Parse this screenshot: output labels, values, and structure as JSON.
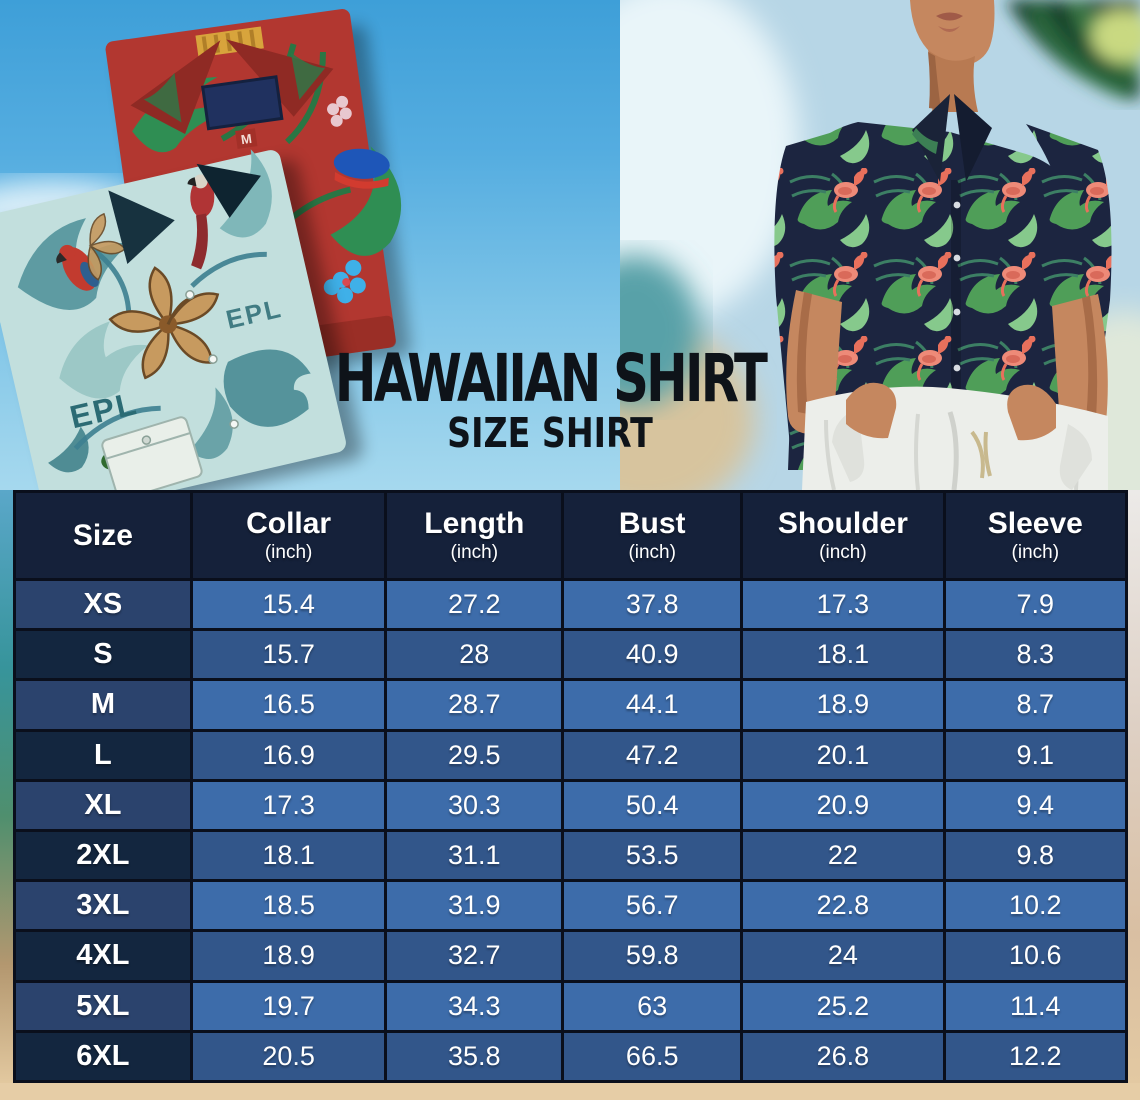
{
  "page": {
    "title": "HAWAIIAN SHIRT",
    "subtitle": "SIZE SHIRT"
  },
  "hero": {
    "red_shirt_size_tag": "M",
    "teal_shirt_print_text": "EPL"
  },
  "chart_data": {
    "type": "table",
    "title": "HAWAIIAN SHIRT SIZE SHIRT",
    "columns": [
      {
        "label": "Size",
        "unit": ""
      },
      {
        "label": "Collar",
        "unit": "(inch)"
      },
      {
        "label": "Length",
        "unit": "(inch)"
      },
      {
        "label": "Bust",
        "unit": "(inch)"
      },
      {
        "label": "Shoulder",
        "unit": "(inch)"
      },
      {
        "label": "Sleeve",
        "unit": "(inch)"
      }
    ],
    "rows": [
      {
        "size": "XS",
        "values": [
          "15.4",
          "27.2",
          "37.8",
          "17.3",
          "7.9"
        ]
      },
      {
        "size": "S",
        "values": [
          "15.7",
          "28",
          "40.9",
          "18.1",
          "8.3"
        ]
      },
      {
        "size": "M",
        "values": [
          "16.5",
          "28.7",
          "44.1",
          "18.9",
          "8.7"
        ]
      },
      {
        "size": "L",
        "values": [
          "16.9",
          "29.5",
          "47.2",
          "20.1",
          "9.1"
        ]
      },
      {
        "size": "XL",
        "values": [
          "17.3",
          "30.3",
          "50.4",
          "20.9",
          "9.4"
        ]
      },
      {
        "size": "2XL",
        "values": [
          "18.1",
          "31.1",
          "53.5",
          "22",
          "9.8"
        ]
      },
      {
        "size": "3XL",
        "values": [
          "18.5",
          "31.9",
          "56.7",
          "22.8",
          "10.2"
        ]
      },
      {
        "size": "4XL",
        "values": [
          "18.9",
          "32.7",
          "59.8",
          "24",
          "10.6"
        ]
      },
      {
        "size": "5XL",
        "values": [
          "19.7",
          "34.3",
          "63",
          "25.2",
          "11.4"
        ]
      },
      {
        "size": "6XL",
        "values": [
          "20.5",
          "35.8",
          "66.5",
          "26.8",
          "12.2"
        ]
      }
    ]
  },
  "colors": {
    "table_border": "#0a0f1c",
    "header_bg": "#15213a",
    "size_cell_light": "#2b436d",
    "size_cell_dark": "#13263f",
    "value_cell_light": "#3d6caa",
    "value_cell_dark": "#32568a",
    "table_text": "#ffffff",
    "title_ink": "#0e1319",
    "sky_blue": "#3e9fd8",
    "sand": "#e6cda6",
    "red_shirt": "#b23730",
    "teal_shirt": "#c2dfdd",
    "navy_shirt": "#1c2540",
    "leaf_green": "#4f9e58",
    "flamingo_pink": "#ee8a78"
  }
}
